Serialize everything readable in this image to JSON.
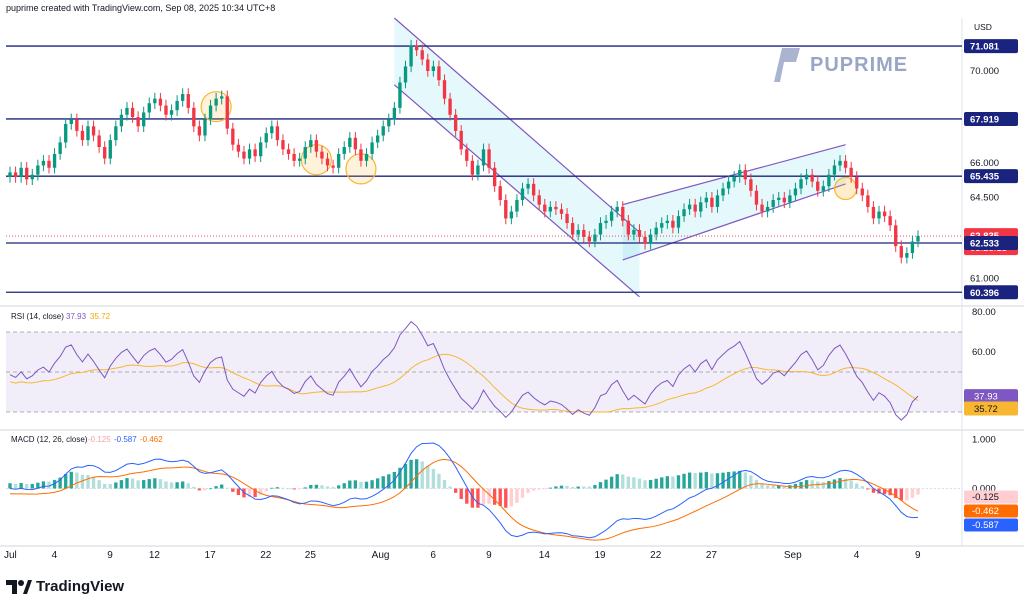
{
  "header": {
    "attribution": "puprime created with TradingView.com, Sep 08, 2025 10:34 UTC+8"
  },
  "brand": {
    "watermark": "PUPRIME"
  },
  "footer": {
    "logo_text": "TradingView"
  },
  "colors": {
    "up": "#089981",
    "down": "#f23645",
    "level": "#1a237e",
    "channel": "#7e57c2",
    "rsi": "#7e57c2",
    "rsi_ma": "#f7b731",
    "macd": "#2962ff",
    "signal": "#ff6d00"
  },
  "chart_data": [
    {
      "type": "candlestick",
      "currency": "USD",
      "y_ticks": [
        "71.081",
        "70.000",
        "67.919",
        "66.000",
        "65.435",
        "64.500",
        "62.835",
        "62.533",
        "61.000",
        "60.396"
      ],
      "ylim": [
        59.8,
        72.3
      ],
      "last_price": 62.835,
      "countdown": "03:25:13",
      "horizontal_levels": [
        71.081,
        67.919,
        65.435,
        62.533,
        60.396
      ],
      "x_ticks": [
        "Jul",
        "4",
        "9",
        "12",
        "17",
        "22",
        "25",
        "Aug",
        "6",
        "9",
        "14",
        "19",
        "22",
        "27",
        "Sep",
        "4",
        "9"
      ],
      "close": [
        65.6,
        65.4,
        65.8,
        65.3,
        65.5,
        65.9,
        66.1,
        65.8,
        66.4,
        66.9,
        67.7,
        67.9,
        67.4,
        67.0,
        67.6,
        67.2,
        66.7,
        66.2,
        67.0,
        67.6,
        68.1,
        68.4,
        68.0,
        67.6,
        68.2,
        68.6,
        68.8,
        68.5,
        68.1,
        68.3,
        68.7,
        69.0,
        68.4,
        67.6,
        67.2,
        67.9,
        68.5,
        68.8,
        68.9,
        67.5,
        66.8,
        66.5,
        66.2,
        66.6,
        66.3,
        66.9,
        67.3,
        67.6,
        67.0,
        66.6,
        66.4,
        66.1,
        66.2,
        66.7,
        67.0,
        66.5,
        66.2,
        65.9,
        65.8,
        66.4,
        66.7,
        67.1,
        66.6,
        66.1,
        66.4,
        66.9,
        67.2,
        67.6,
        67.9,
        68.4,
        69.5,
        70.2,
        71.1,
        70.9,
        70.5,
        70.0,
        70.2,
        69.6,
        68.8,
        68.1,
        67.4,
        66.6,
        66.1,
        65.5,
        65.9,
        66.6,
        65.8,
        65.0,
        64.4,
        63.6,
        63.9,
        64.4,
        64.9,
        65.1,
        64.6,
        64.2,
        63.9,
        64.1,
        64.0,
        63.8,
        63.4,
        62.9,
        63.1,
        62.8,
        62.6,
        62.9,
        63.4,
        63.5,
        63.9,
        64.1,
        63.5,
        62.9,
        63.1,
        62.8,
        62.5,
        62.9,
        63.2,
        63.4,
        63.5,
        63.2,
        63.7,
        64.0,
        64.2,
        63.9,
        64.3,
        64.5,
        64.1,
        64.6,
        64.9,
        65.2,
        65.4,
        65.7,
        65.3,
        64.8,
        64.2,
        63.9,
        64.1,
        64.4,
        64.5,
        64.3,
        64.6,
        64.9,
        65.3,
        65.5,
        65.2,
        64.8,
        65.0,
        65.5,
        65.9,
        66.1,
        65.8,
        65.4,
        64.9,
        64.6,
        64.1,
        63.6,
        63.9,
        63.7,
        63.3,
        62.4,
        61.9,
        62.1,
        62.6,
        62.835
      ],
      "channels": [
        {
          "name": "Falling Channel",
          "from": "Jul 30",
          "to": "Aug 14"
        },
        {
          "name": "Rising Channel",
          "from": "Aug 13",
          "to": "Sep 4"
        }
      ]
    },
    {
      "type": "line",
      "title": "RSI (14, close)",
      "values_text": [
        "37.93",
        "35.72"
      ],
      "y_ticks": [
        "80.00",
        "60.00"
      ],
      "levels": [
        70,
        50,
        30
      ],
      "ylim": [
        22,
        82
      ],
      "last": {
        "rsi": 37.93,
        "ma": 35.72
      }
    },
    {
      "type": "line",
      "title": "MACD (12, 26, close)",
      "values_text": [
        "-0.125",
        "-0.587",
        "-0.462"
      ],
      "y_ticks": [
        "1.000",
        "0.000"
      ],
      "ylim": [
        -1.15,
        1.15
      ],
      "last": {
        "histogram": -0.125,
        "macd": -0.587,
        "signal": -0.462
      }
    }
  ]
}
